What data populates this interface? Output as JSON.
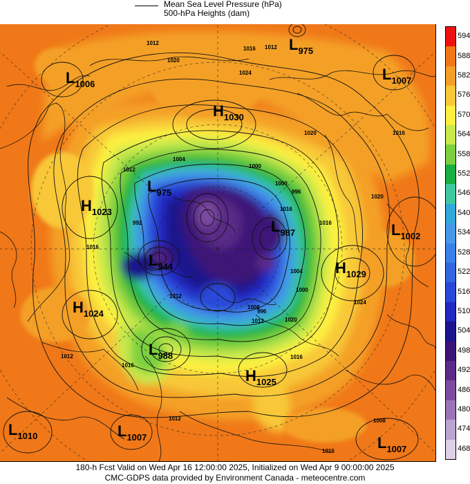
{
  "legend": {
    "line1": "Mean Sea Level Pressure (hPa)",
    "line2": "500-hPa Heights (dam)"
  },
  "colorbar": {
    "levels": [
      "594",
      "588",
      "582",
      "576",
      "570",
      "564",
      "558",
      "552",
      "546",
      "540",
      "534",
      "528",
      "522",
      "516",
      "510",
      "504",
      "498",
      "492",
      "486",
      "480",
      "474",
      "468"
    ],
    "colors": [
      "#ee1111",
      "#f07818",
      "#f4a028",
      "#f8c838",
      "#fcf040",
      "#c8e84c",
      "#7cd040",
      "#18b040",
      "#40c8a0",
      "#30a8d8",
      "#4898e8",
      "#3a80e8",
      "#3066e0",
      "#2a48d8",
      "#2028c0",
      "#1c148c",
      "#3c1478",
      "#5a2c88",
      "#7c4ca0",
      "#9a74b8",
      "#bca4d0",
      "#ddd0e8"
    ]
  },
  "systems": [
    {
      "type": "L",
      "value": "975"
    },
    {
      "type": "L",
      "value": "1006"
    },
    {
      "type": "L",
      "value": "1007"
    },
    {
      "type": "H",
      "value": "1030"
    },
    {
      "type": "L",
      "value": "975"
    },
    {
      "type": "H",
      "value": "1023"
    },
    {
      "type": "L",
      "value": "987"
    },
    {
      "type": "L",
      "value": "1002"
    },
    {
      "type": "L",
      "value": "944"
    },
    {
      "type": "H",
      "value": "1029"
    },
    {
      "type": "H",
      "value": "1024"
    },
    {
      "type": "L",
      "value": "988"
    },
    {
      "type": "H",
      "value": "1025"
    },
    {
      "type": "L",
      "value": "1010"
    },
    {
      "type": "L",
      "value": "1007"
    },
    {
      "type": "L",
      "value": "1007"
    }
  ],
  "isobar_labels": [
    "1012",
    "1016",
    "1012",
    "1020",
    "1024",
    "1016",
    "1020",
    "1012",
    "1020",
    "1016",
    "1016",
    "1004",
    "1000",
    "1000",
    "996",
    "992",
    "1008",
    "1016",
    "1004",
    "996",
    "1000",
    "1012",
    "1020",
    "1016",
    "1024",
    "1012",
    "1016",
    "1012",
    "1008",
    "1016",
    "1012"
  ],
  "footer": {
    "line1": "180-h Fcst Valid on Wed Apr 16 12:00:00 2025, Initialized on Wed Apr  9 00:00:00 2025",
    "line2": "CMC-GDPS data provided by Environment Canada - meteocentre.com"
  }
}
